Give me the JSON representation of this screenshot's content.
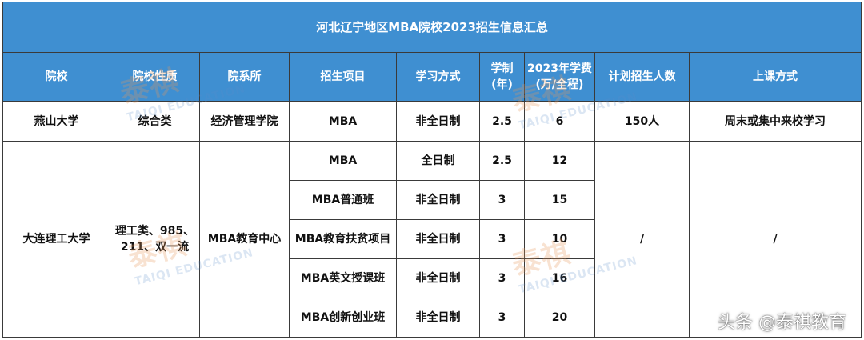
{
  "title": "河北辽宁地区MBA院校2023招生信息汇总",
  "headers": {
    "school": "院校",
    "nature": "院校性质",
    "department": "院系所",
    "program": "招生项目",
    "mode": "学习方式",
    "duration": "学制\n(年)",
    "tuition": "2023年学费\n(万/全程)",
    "quota": "计划招生人数",
    "class_mode": "上课方式"
  },
  "yanshan": {
    "school": "燕山大学",
    "nature": "综合类",
    "department": "经济管理学院",
    "program": "MBA",
    "mode": "非全日制",
    "duration": "2.5",
    "tuition": "6",
    "quota": "150人",
    "class_mode": "周末或集中来校学习"
  },
  "dalian": {
    "school": "大连理工大学",
    "nature": "理工类、985、\n211、双一流",
    "department": "MBA教育中心",
    "quota": "/",
    "class_mode": "/",
    "programs": [
      {
        "program": "MBA",
        "mode": "全日制",
        "duration": "2.5",
        "tuition": "12"
      },
      {
        "program": "MBA普通班",
        "mode": "非全日制",
        "duration": "3",
        "tuition": "15"
      },
      {
        "program": "MBA教育扶贫项目",
        "mode": "非全日制",
        "duration": "3",
        "tuition": "10"
      },
      {
        "program": "MBA英文授课班",
        "mode": "非全日制",
        "duration": "3",
        "tuition": "16"
      },
      {
        "program": "MBA创新创业班",
        "mode": "非全日制",
        "duration": "3",
        "tuition": "20"
      }
    ]
  },
  "watermark": {
    "logo": "泰祺",
    "text": "TAIQI EDUCATION"
  },
  "footer": "头条 @泰祺教育",
  "colors": {
    "header_bg": "#3f8fd1",
    "header_text": "#ffffff",
    "border": "#3a3a3a"
  }
}
